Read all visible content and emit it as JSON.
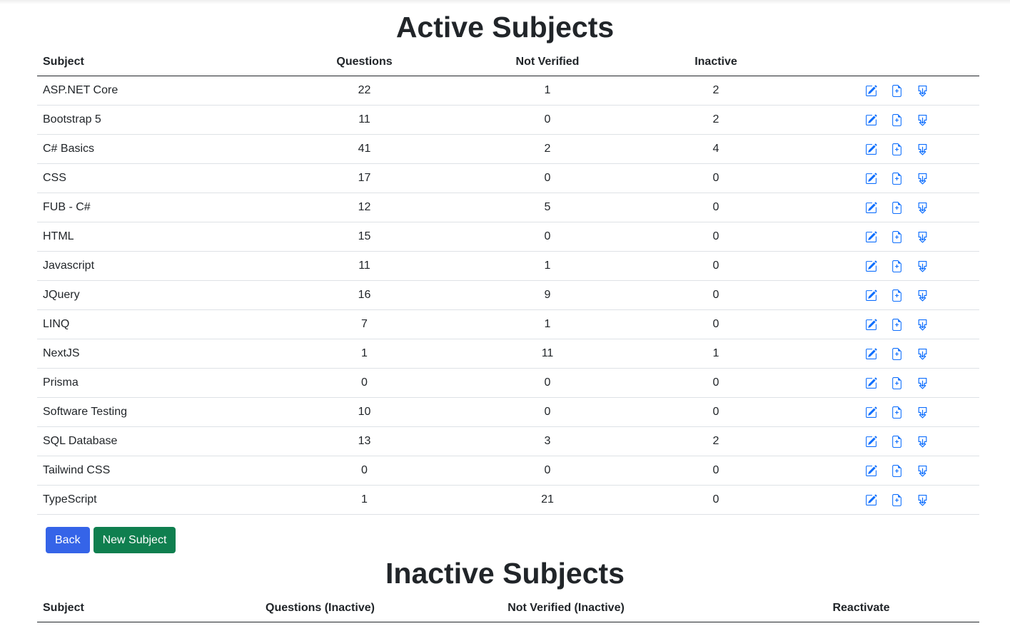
{
  "active": {
    "title": "Active Subjects",
    "headers": [
      "Subject",
      "Questions",
      "Not Verified",
      "Inactive",
      ""
    ],
    "rows": [
      {
        "subject": "ASP.NET Core",
        "questions": "22",
        "not_verified": "1",
        "inactive": "2"
      },
      {
        "subject": "Bootstrap 5",
        "questions": "11",
        "not_verified": "0",
        "inactive": "2"
      },
      {
        "subject": "C# Basics",
        "questions": "41",
        "not_verified": "2",
        "inactive": "4"
      },
      {
        "subject": "CSS",
        "questions": "17",
        "not_verified": "0",
        "inactive": "0"
      },
      {
        "subject": "FUB - C#",
        "questions": "12",
        "not_verified": "5",
        "inactive": "0"
      },
      {
        "subject": "HTML",
        "questions": "15",
        "not_verified": "0",
        "inactive": "0"
      },
      {
        "subject": "Javascript",
        "questions": "11",
        "not_verified": "1",
        "inactive": "0"
      },
      {
        "subject": "JQuery",
        "questions": "16",
        "not_verified": "9",
        "inactive": "0"
      },
      {
        "subject": "LINQ",
        "questions": "7",
        "not_verified": "1",
        "inactive": "0"
      },
      {
        "subject": "NextJS",
        "questions": "1",
        "not_verified": "11",
        "inactive": "1"
      },
      {
        "subject": "Prisma",
        "questions": "0",
        "not_verified": "0",
        "inactive": "0"
      },
      {
        "subject": "Software Testing",
        "questions": "10",
        "not_verified": "0",
        "inactive": "0"
      },
      {
        "subject": "SQL Database",
        "questions": "13",
        "not_verified": "3",
        "inactive": "2"
      },
      {
        "subject": "Tailwind CSS",
        "questions": "0",
        "not_verified": "0",
        "inactive": "0"
      },
      {
        "subject": "TypeScript",
        "questions": "1",
        "not_verified": "21",
        "inactive": "0"
      }
    ],
    "row_actions": [
      "edit-icon",
      "file-plus-icon",
      "download-icon"
    ]
  },
  "buttons": {
    "back": "Back",
    "new_subject": "New Subject"
  },
  "inactive": {
    "title": "Inactive Subjects",
    "headers": [
      "Subject",
      "Questions (Inactive)",
      "Not Verified (Inactive)",
      "Reactivate"
    ]
  },
  "colors": {
    "link": "#0d6efd",
    "back_button": "#3564e8",
    "new_button": "#0f7f4f"
  }
}
